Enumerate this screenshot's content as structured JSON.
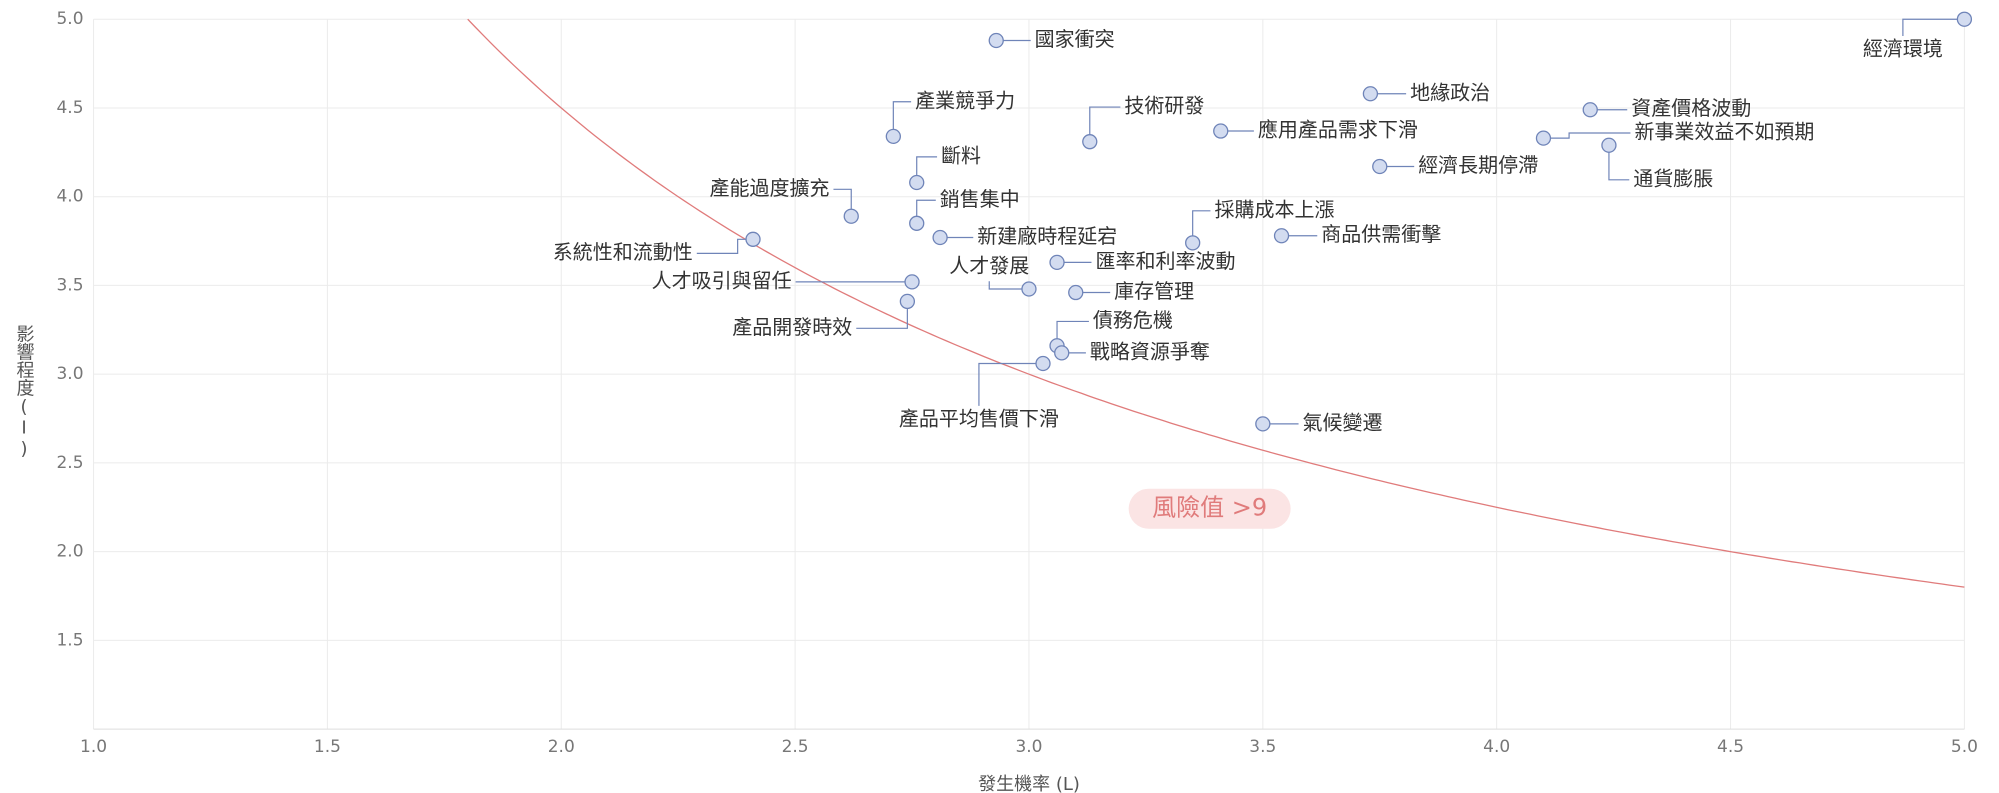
{
  "chart_data": {
    "type": "scatter",
    "x_label": "發生機率 (L)",
    "y_label": "影響程度(I)",
    "annotation": "風險值 >9",
    "risk_threshold": 9,
    "xlim": [
      1,
      5
    ],
    "ylim": [
      1,
      5
    ],
    "xticks": [
      {
        "value": 1,
        "label": "1.0"
      },
      1.5,
      {
        "value": 2,
        "label": "2.0"
      },
      2.5,
      {
        "value": 3,
        "label": "3.0"
      },
      3.5,
      {
        "value": 4,
        "label": "4.0"
      },
      4.5,
      {
        "value": 5,
        "label": "5.0"
      }
    ],
    "yticks": [
      1.5,
      {
        "value": 2,
        "label": "2.0"
      },
      2.5,
      {
        "value": 3,
        "label": "3.0"
      },
      3.5,
      {
        "value": 4,
        "label": "4.0"
      },
      4.5,
      {
        "value": 5,
        "label": "5.0"
      }
    ],
    "grid": true,
    "color": "#d3dcf0",
    "edge_color": "#6f84b8",
    "curve_color": "#e07b7b",
    "labels": [
      "國家衝突",
      "經濟環境",
      "產業競爭力",
      "技術研發",
      "地緣政治",
      "資產價格波動",
      "應用產品需求下滑",
      "新事業效益不如預期",
      "通貨膨脹",
      "經濟長期停滯",
      "斷料",
      "產能過度擴充",
      "銷售集中",
      "新建廠時程延宕",
      "系統性和流動性",
      "採購成本上漲",
      "商品供需衝擊",
      "匯率和利率波動",
      "人才吸引與留任",
      "人才發展",
      "庫存管理",
      "產品開發時效",
      "債務危機",
      "戰略資源爭奪",
      "產品平均售價下滑",
      "氣候變遷"
    ],
    "x": [
      2.93,
      5.0,
      2.71,
      3.13,
      3.73,
      4.2,
      3.41,
      4.1,
      4.24,
      3.75,
      2.76,
      2.62,
      2.76,
      2.81,
      2.41,
      3.35,
      3.54,
      3.06,
      2.75,
      3.0,
      3.1,
      2.74,
      3.06,
      3.07,
      3.03,
      3.5
    ],
    "y": [
      4.88,
      5.0,
      4.34,
      4.31,
      4.58,
      4.49,
      4.37,
      4.33,
      4.29,
      4.17,
      4.08,
      3.89,
      3.85,
      3.77,
      3.76,
      3.74,
      3.78,
      3.63,
      3.52,
      3.48,
      3.46,
      3.41,
      3.16,
      3.12,
      3.06,
      2.72
    ]
  }
}
